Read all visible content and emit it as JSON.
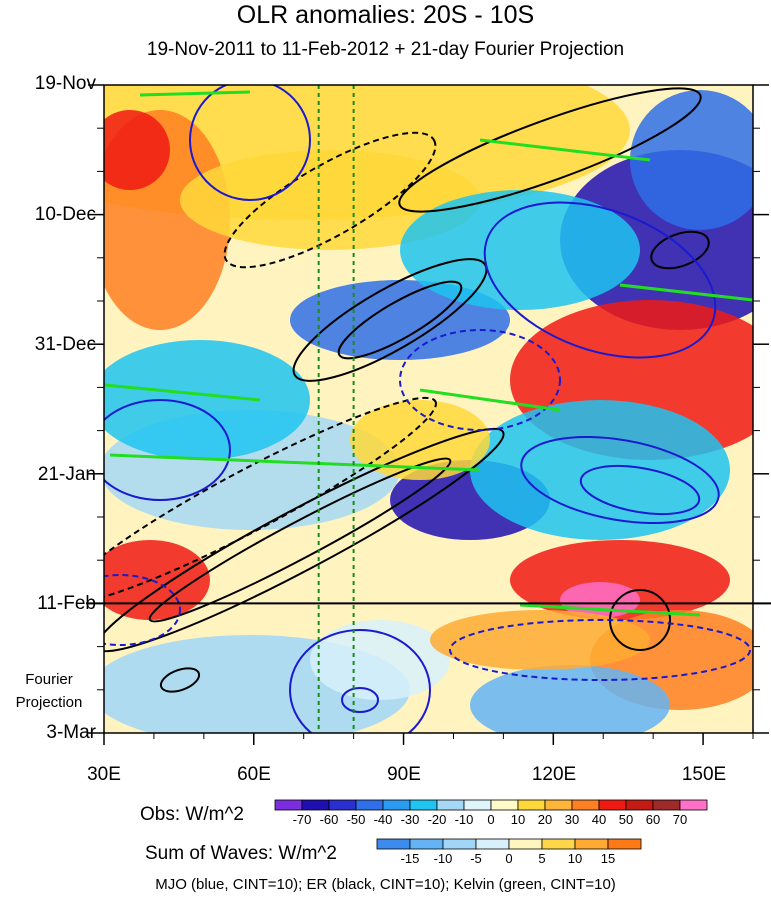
{
  "chart_data": {
    "type": "heatmap",
    "title": "OLR anomalies: 20S - 10S",
    "subtitle": "19-Nov-2011 to 11-Feb-2012 + 21-day Fourier Projection",
    "x_ticks": [
      {
        "label": "30E",
        "value": 30
      },
      {
        "label": "60E",
        "value": 60
      },
      {
        "label": "90E",
        "value": 90
      },
      {
        "label": "120E",
        "value": 120
      },
      {
        "label": "150E",
        "value": 150
      }
    ],
    "xlim": [
      30,
      160
    ],
    "y_ticks": [
      {
        "label": "19-Nov",
        "day": 0
      },
      {
        "label": "10-Dec",
        "day": 21
      },
      {
        "label": "31-Dec",
        "day": 42
      },
      {
        "label": "21-Jan",
        "day": 63
      },
      {
        "label": "11-Feb",
        "day": 84
      },
      {
        "label": "3-Mar",
        "day": 105
      }
    ],
    "projection_label_line1": "Fourier",
    "projection_label_line2": "Projection",
    "projection_start": "11-Feb",
    "reference_lines_lon": [
      73,
      80
    ],
    "obs_legend": {
      "title": "Obs: W/m^2",
      "labels": [
        "-70",
        "-60",
        "-50",
        "-40",
        "-30",
        "-20",
        "-10",
        "0",
        "10",
        "20",
        "30",
        "40",
        "50",
        "60",
        "70"
      ],
      "colors": [
        "#7b2ee0",
        "#1f0fb0",
        "#2a2fd0",
        "#2f6fe8",
        "#2a9bf0",
        "#1fc4f0",
        "#a6d8f5",
        "#e0f5fb",
        "#fffbc8",
        "#ffd83a",
        "#ffb43a",
        "#ff7f22",
        "#f01a14",
        "#c41a14",
        "#a02a2a",
        "#ff70c8"
      ]
    },
    "waves_legend": {
      "title": "Sum of Waves: W/m^2",
      "labels": [
        "-15",
        "-10",
        "-5",
        "0",
        "5",
        "10",
        "15"
      ],
      "colors": [
        "#3c8cf0",
        "#64b4f5",
        "#a0d6f8",
        "#d8f0fb",
        "#fff6bf",
        "#ffd64a",
        "#ffaa32",
        "#ff7a14"
      ]
    },
    "contours": [
      {
        "name": "MJO",
        "color": "blue",
        "cint": 10
      },
      {
        "name": "ER",
        "color": "black",
        "cint": 10
      },
      {
        "name": "Kelvin",
        "color": "green",
        "cint": 10
      }
    ],
    "footer": "MJO (blue, CINT=10); ER (black, CINT=10); Kelvin (green, CINT=10)"
  }
}
